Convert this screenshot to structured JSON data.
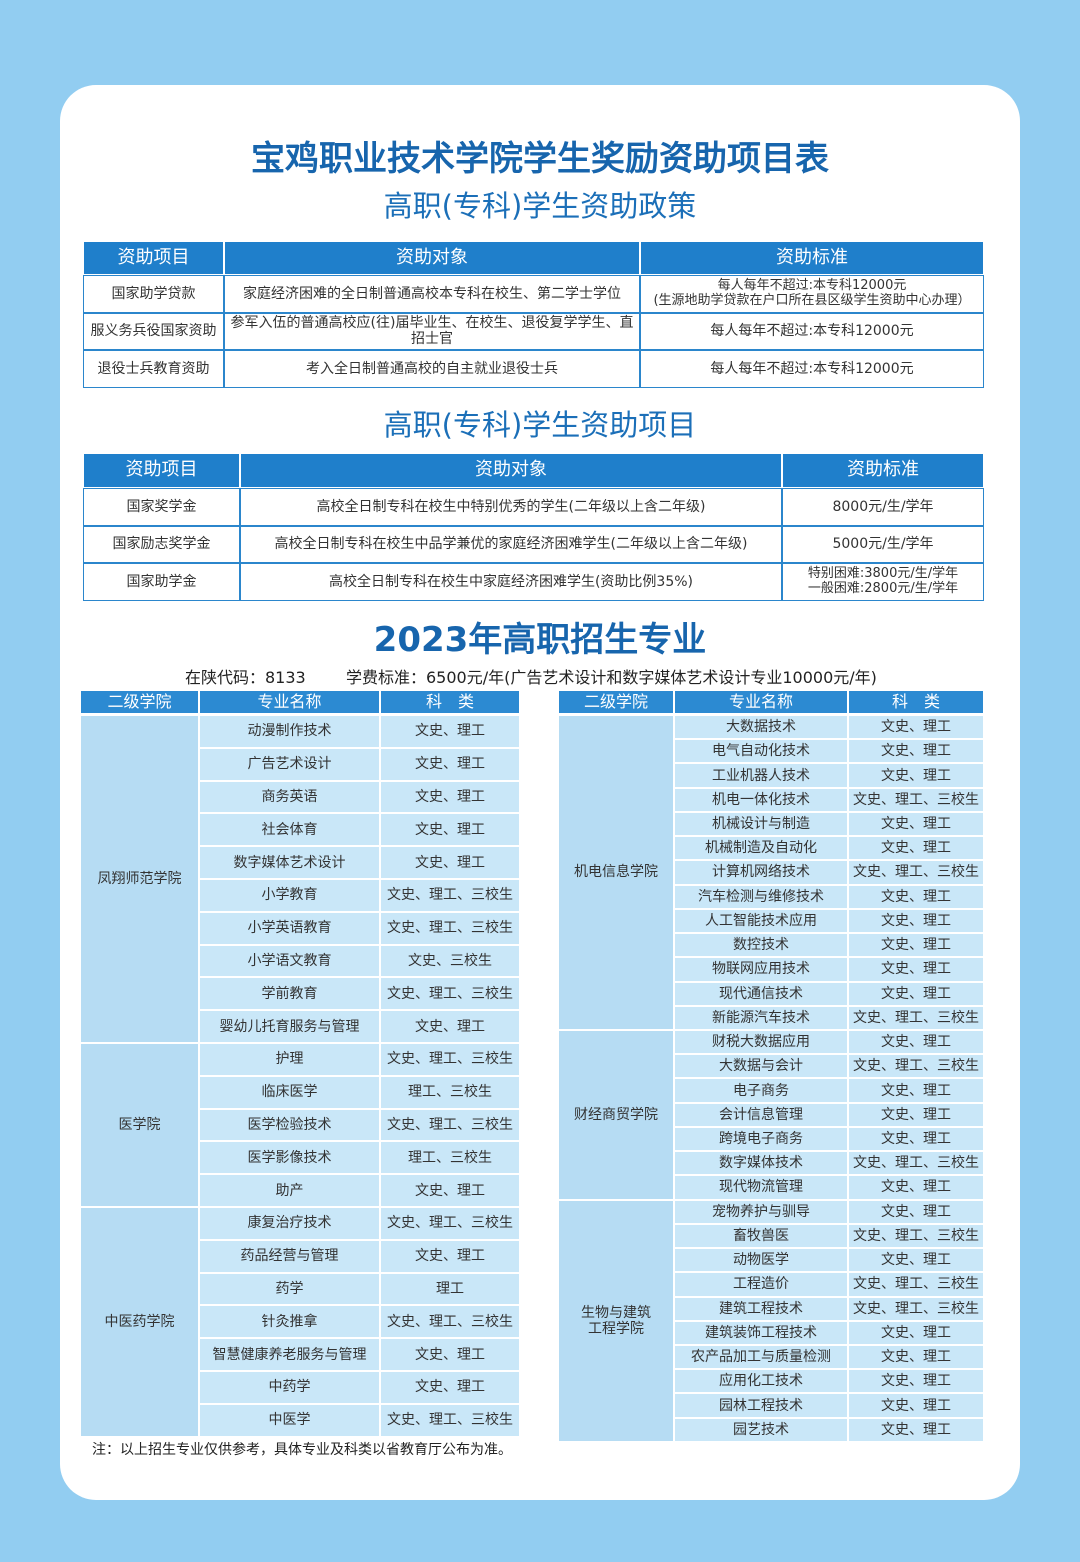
{
  "title": "宝鸡职业技术学院学生奖励资助项目表",
  "policy": {
    "heading": "高职(专科)学生资助政策",
    "headers": [
      "资助项目",
      "资助对象",
      "资助标准"
    ],
    "rows": [
      [
        "国家助学贷款",
        "家庭经济困难的全日制普通高校本专科在校生、第二学士学位",
        "每人每年不超过:本专科12000元\n(生源地助学贷款在户口所在县区级学生资助中心办理）"
      ],
      [
        "服义务兵役国家资助",
        "参军入伍的普通高校应(往)届毕业生、在校生、退役复学学生、直招士官",
        "每人每年不超过:本专科12000元"
      ],
      [
        "退役士兵教育资助",
        "考入全日制普通高校的自主就业退役士兵",
        "每人每年不超过:本专科12000元"
      ]
    ]
  },
  "projects": {
    "heading": "高职(专科)学生资助项目",
    "headers": [
      "资助项目",
      "资助对象",
      "资助标准"
    ],
    "rows": [
      [
        "国家奖学金",
        "高校全日制专科在校生中特别优秀的学生(二年级以上含二年级)",
        "8000元/生/学年"
      ],
      [
        "国家励志奖学金",
        "高校全日制专科在校生中品学兼优的家庭经济困难学生(二年级以上含二年级)",
        "5000元/生/学年"
      ],
      [
        "国家助学金",
        "高校全日制专科在校生中家庭经济困难学生(资助比例35%)",
        "特别困难:3800元/生/学年\n一般困难:2800元/生/学年"
      ]
    ]
  },
  "majors": {
    "heading": "2023年高职招生专业",
    "code": "在陕代码：8133",
    "fee": "学费标准：6500元/年(广告艺术设计和数字媒体艺术设计专业10000元/年)",
    "left": {
      "headers": [
        "二级学院",
        "专业名称",
        "科　类"
      ],
      "groups": [
        {
          "college": "凤翔师范学院",
          "majors": [
            [
              "动漫制作技术",
              "文史、理工"
            ],
            [
              "广告艺术设计",
              "文史、理工"
            ],
            [
              "商务英语",
              "文史、理工"
            ],
            [
              "社会体育",
              "文史、理工"
            ],
            [
              "数字媒体艺术设计",
              "文史、理工"
            ],
            [
              "小学教育",
              "文史、理工、三校生"
            ],
            [
              "小学英语教育",
              "文史、理工、三校生"
            ],
            [
              "小学语文教育",
              "文史、三校生"
            ],
            [
              "学前教育",
              "文史、理工、三校生"
            ],
            [
              "婴幼儿托育服务与管理",
              "文史、理工"
            ]
          ]
        },
        {
          "college": "医学院",
          "majors": [
            [
              "护理",
              "文史、理工、三校生"
            ],
            [
              "临床医学",
              "理工、三校生"
            ],
            [
              "医学检验技术",
              "文史、理工、三校生"
            ],
            [
              "医学影像技术",
              "理工、三校生"
            ],
            [
              "助产",
              "文史、理工"
            ]
          ]
        },
        {
          "college": "中医药学院",
          "majors": [
            [
              "康复治疗技术",
              "文史、理工、三校生"
            ],
            [
              "药品经营与管理",
              "文史、理工"
            ],
            [
              "药学",
              "理工"
            ],
            [
              "针灸推拿",
              "文史、理工、三校生"
            ],
            [
              "智慧健康养老服务与管理",
              "文史、理工"
            ],
            [
              "中药学",
              "文史、理工"
            ],
            [
              "中医学",
              "文史、理工、三校生"
            ]
          ]
        }
      ]
    },
    "right": {
      "headers": [
        "二级学院",
        "专业名称",
        "科　类"
      ],
      "groups": [
        {
          "college": "机电信息学院",
          "majors": [
            [
              "大数据技术",
              "文史、理工"
            ],
            [
              "电气自动化技术",
              "文史、理工"
            ],
            [
              "工业机器人技术",
              "文史、理工"
            ],
            [
              "机电一体化技术",
              "文史、理工、三校生"
            ],
            [
              "机械设计与制造",
              "文史、理工"
            ],
            [
              "机械制造及自动化",
              "文史、理工"
            ],
            [
              "计算机网络技术",
              "文史、理工、三校生"
            ],
            [
              "汽车检测与维修技术",
              "文史、理工"
            ],
            [
              "人工智能技术应用",
              "文史、理工"
            ],
            [
              "数控技术",
              "文史、理工"
            ],
            [
              "物联网应用技术",
              "文史、理工"
            ],
            [
              "现代通信技术",
              "文史、理工"
            ],
            [
              "新能源汽车技术",
              "文史、理工、三校生"
            ]
          ]
        },
        {
          "college": "财经商贸学院",
          "majors": [
            [
              "财税大数据应用",
              "文史、理工"
            ],
            [
              "大数据与会计",
              "文史、理工、三校生"
            ],
            [
              "电子商务",
              "文史、理工"
            ],
            [
              "会计信息管理",
              "文史、理工"
            ],
            [
              "跨境电子商务",
              "文史、理工"
            ],
            [
              "数字媒体技术",
              "文史、理工、三校生"
            ],
            [
              "现代物流管理",
              "文史、理工"
            ]
          ]
        },
        {
          "college": "生物与建筑\n工程学院",
          "majors": [
            [
              "宠物养护与驯导",
              "文史、理工"
            ],
            [
              "畜牧兽医",
              "文史、理工、三校生"
            ],
            [
              "动物医学",
              "文史、理工"
            ],
            [
              "工程造价",
              "文史、理工、三校生"
            ],
            [
              "建筑工程技术",
              "文史、理工、三校生"
            ],
            [
              "建筑装饰工程技术",
              "文史、理工"
            ],
            [
              "农产品加工与质量检测",
              "文史、理工"
            ],
            [
              "应用化工技术",
              "文史、理工"
            ],
            [
              "园林工程技术",
              "文史、理工"
            ],
            [
              "园艺技术",
              "文史、理工"
            ]
          ]
        }
      ]
    },
    "note": "注：以上招生专业仅供参考，具体专业及科类以省教育厅公布为准。"
  }
}
